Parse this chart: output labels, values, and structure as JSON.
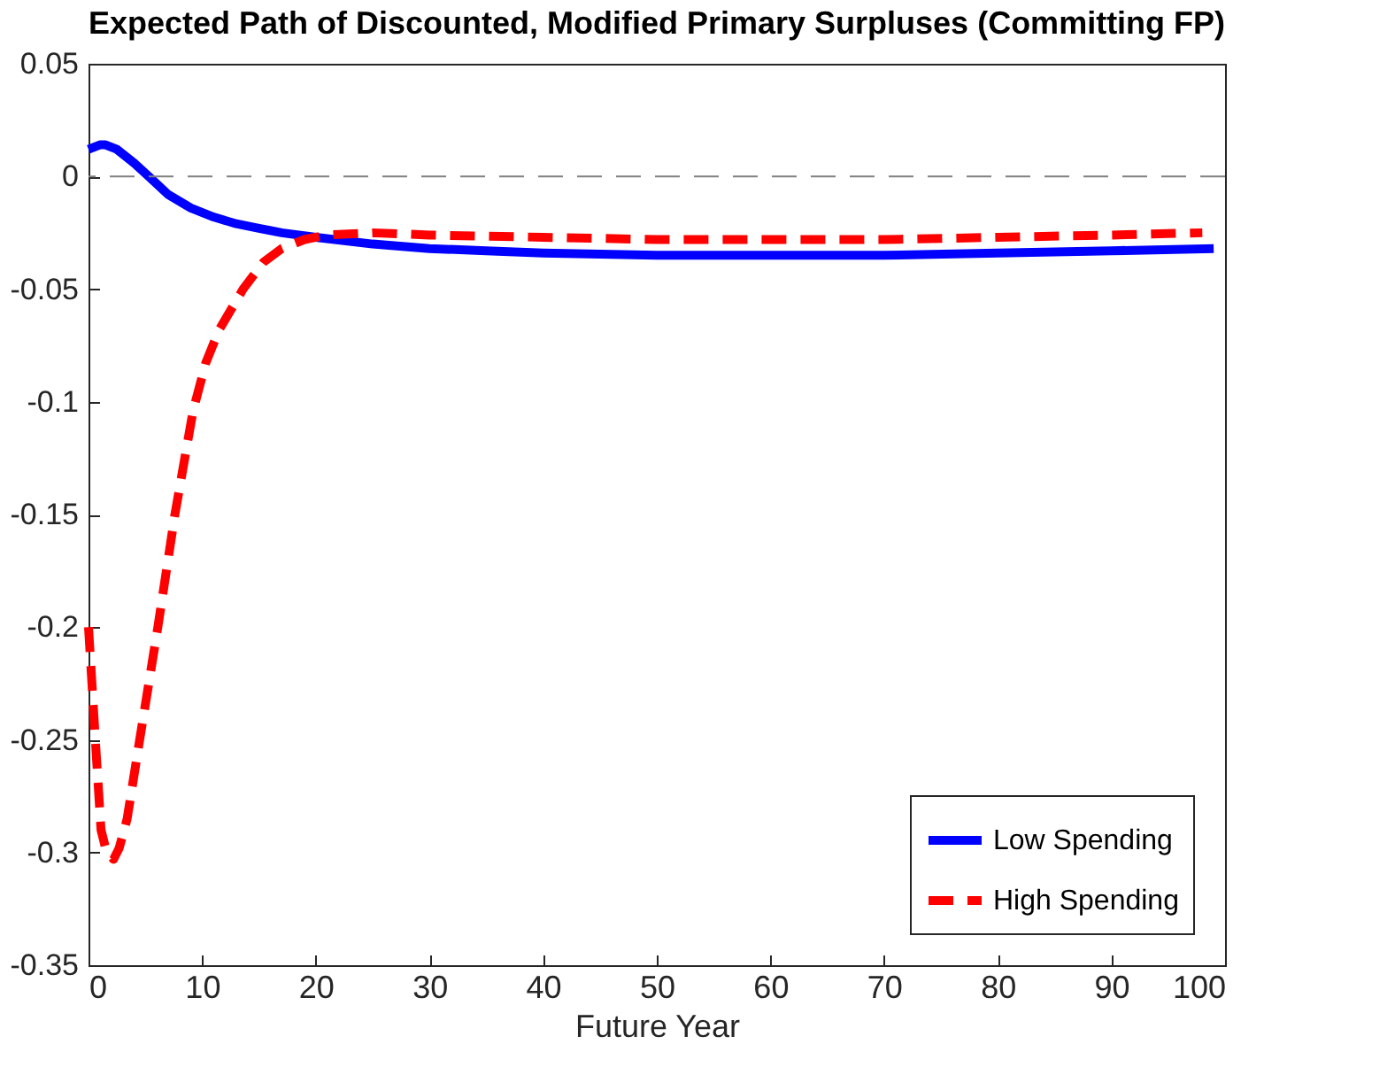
{
  "chart_data": {
    "type": "line",
    "title": "Expected Path of Discounted, Modified Primary Surpluses (Committing FP)",
    "xlabel": "Future Year",
    "xlim": [
      0,
      100
    ],
    "xticks": [
      0,
      10,
      20,
      30,
      40,
      50,
      60,
      70,
      80,
      90,
      100
    ],
    "ylim": [
      -0.35,
      0.05
    ],
    "yticks": [
      -0.35,
      -0.3,
      -0.25,
      -0.2,
      -0.15,
      -0.1,
      -0.05,
      0,
      0.05
    ],
    "grid": false,
    "legend": "bottom right",
    "ref_lines": [
      {
        "axis": "y",
        "value": 0,
        "color": "#808080",
        "line_style": "dashed"
      }
    ],
    "series": [
      {
        "name": "Low Spending",
        "color": "#0000ff",
        "line_style": "solid",
        "x": [
          0,
          1,
          1.5,
          2.5,
          4,
          5.3,
          7,
          9,
          11,
          13,
          15,
          17,
          20,
          25,
          30,
          35,
          40,
          50,
          60,
          70,
          80,
          90,
          99
        ],
        "values": [
          0.012,
          0.014,
          0.014,
          0.012,
          0.006,
          0,
          -0.008,
          -0.014,
          -0.018,
          -0.021,
          -0.023,
          -0.025,
          -0.027,
          -0.03,
          -0.032,
          -0.033,
          -0.034,
          -0.035,
          -0.035,
          -0.035,
          -0.034,
          -0.033,
          -0.032
        ]
      },
      {
        "name": "High Spending",
        "color": "#ff0000",
        "line_style": "dashed",
        "x": [
          0,
          0.6,
          1.1,
          1.6,
          2.2,
          2.7,
          3.4,
          4.5,
          6.1,
          7.6,
          9.2,
          10.3,
          11.5,
          13.6,
          15.4,
          17,
          19,
          21,
          25,
          30,
          40,
          50,
          60,
          70,
          80,
          90,
          98
        ],
        "values": [
          -0.2,
          -0.25,
          -0.29,
          -0.3,
          -0.303,
          -0.298,
          -0.285,
          -0.25,
          -0.2,
          -0.15,
          -0.104,
          -0.083,
          -0.068,
          -0.05,
          -0.038,
          -0.032,
          -0.028,
          -0.026,
          -0.025,
          -0.026,
          -0.027,
          -0.028,
          -0.028,
          -0.028,
          -0.027,
          -0.026,
          -0.025
        ]
      }
    ]
  }
}
